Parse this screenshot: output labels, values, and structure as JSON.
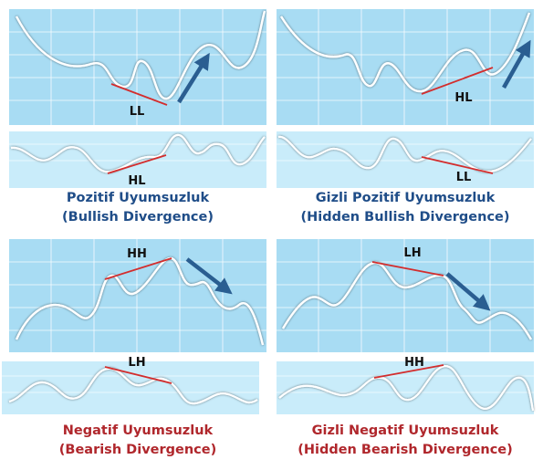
{
  "colors": {
    "panel_bg": "#a8dcf3",
    "lower_panel_bg": "#c9ecfa",
    "grid": "#ffffff",
    "price_line": "#ffffff",
    "trend_line": "#d32d2d",
    "arrow": "#2a5e91",
    "caption_blue": "#1f4d88",
    "caption_red": "#b0272c"
  },
  "panels": [
    {
      "id": "bullish",
      "caption_line1": "Pozitif Uyumsuzluk",
      "caption_line2": "(Bullish Divergence)",
      "price_label": "LL",
      "indicator_label": "HL",
      "arrow_direction": "up"
    },
    {
      "id": "hidden-bullish",
      "caption_line1": "Gizli Pozitif Uyumsuzluk",
      "caption_line2": "(Hidden Bullish Divergence)",
      "price_label": "HL",
      "indicator_label": "LL",
      "arrow_direction": "up"
    },
    {
      "id": "bearish",
      "caption_line1": "Negatif Uyumsuzluk",
      "caption_line2": "(Bearish Divergence)",
      "price_label": "HH",
      "indicator_label": "LH",
      "arrow_direction": "down"
    },
    {
      "id": "hidden-bearish",
      "caption_line1": "Gizli Negatif Uyumsuzluk",
      "caption_line2": "(Hidden Bearish Divergence)",
      "price_label": "LH",
      "indicator_label": "HH",
      "arrow_direction": "down"
    }
  ]
}
